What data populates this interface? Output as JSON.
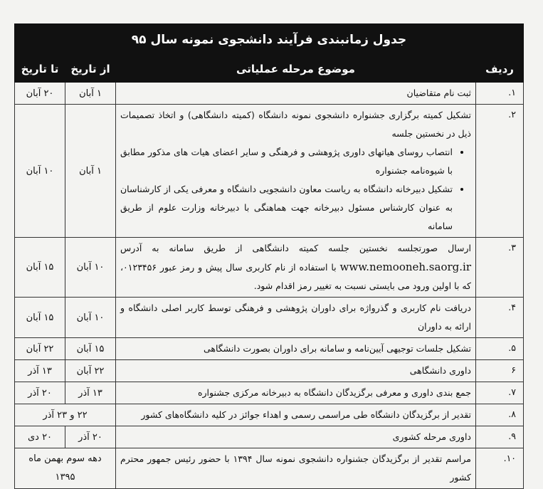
{
  "title": "جدول زمانبندی فرآیند دانشجوی نمونه سال ۹۵",
  "headers": {
    "row": "ردیف",
    "subject": "موضوع مرحله عملیاتی",
    "from": "از تاریخ",
    "to": "تا تاریخ"
  },
  "rows": [
    {
      "num": "۱.",
      "subject": "ثبت نام متقاضیان",
      "from": "۱ آبان",
      "to": "۲۰ آبان"
    },
    {
      "num": "۲.",
      "subject": "تشکیل کمیته برگزاری جشنواره دانشجوی نمونه دانشگاه (کمیته دانشگاهی) و اتخاذ تصمیمات ذیل در نخستین جلسه",
      "bullets": [
        "انتصاب روسای هیاتهای داوری پژوهشی و فرهنگی و سایر اعضای هیات های مذکور مطابق با شیوه‌نامه جشنواره",
        "تشکیل دبیرخانه دانشگاه به ریاست معاون دانشجویی دانشگاه و معرفی یکی از کارشناسان به عنوان کارشناس مسئول دبیرخانه جهت هماهنگی با دبیرخانه وزارت علوم از طریق سامانه"
      ],
      "from": "۱ آبان",
      "to": "۱۰ آبان"
    },
    {
      "num": "۳.",
      "subject_a": "ارسال صورتجلسه نخستین جلسه کمیته دانشگاهی از طریق سامانه به آدرس",
      "url": "www.nemooneh.saorg.ir",
      "subject_b": "با استفاده از نام کاربری سال پیش و رمز عبور ۰۱۲۳۴۵۶، که با اولین ورود می بایستی نسبت به تغییر رمز اقدام شود.",
      "from": "۱۰ آبان",
      "to": "۱۵ آبان"
    },
    {
      "num": "۴.",
      "subject": "دریافت نام کاربری و گذرواژه برای داوران پژوهشی و فرهنگی توسط کاربر اصلی دانشگاه و ارائه به داوران",
      "from": "۱۰ آبان",
      "to": "۱۵ آبان"
    },
    {
      "num": "۵.",
      "subject": "تشکیل جلسات توجیهی آیین‌نامه و سامانه برای داوران بصورت دانشگاهی",
      "from": "۱۵ آبان",
      "to": "۲۲ آبان"
    },
    {
      "num": "۶",
      "subject": "داوری دانشگاهی",
      "from": "۲۲ آبان",
      "to": "۱۳ آذر"
    },
    {
      "num": "۷.",
      "subject": "جمع بندی داوری و معرفی برگزیدگان دانشگاه به دبیرخانه مرکزی جشنواره",
      "from": "۱۳ آذر",
      "to": "۲۰ آذر"
    },
    {
      "num": "۸.",
      "subject": "تقدیر از برگزیدگان دانشگاه طی مراسمی رسمی و اهداء جوائز در کلیه دانشگاه‌های کشور",
      "date": "۲۲ و ۲۳ آذر"
    },
    {
      "num": "۹.",
      "subject": "داوری مرحله کشوری",
      "from": "۲۰ آذر",
      "to": "۲۰ دی"
    },
    {
      "num": "۱۰.",
      "subject": "مراسم تقدیر از برگزیدگان جشنواره دانشجوی نمونه سال ۱۳۹۴ با حضور رئیس جمهور محترم کشور",
      "date": "دهه سوم بهمن ماه ۱۳۹۵"
    }
  ]
}
